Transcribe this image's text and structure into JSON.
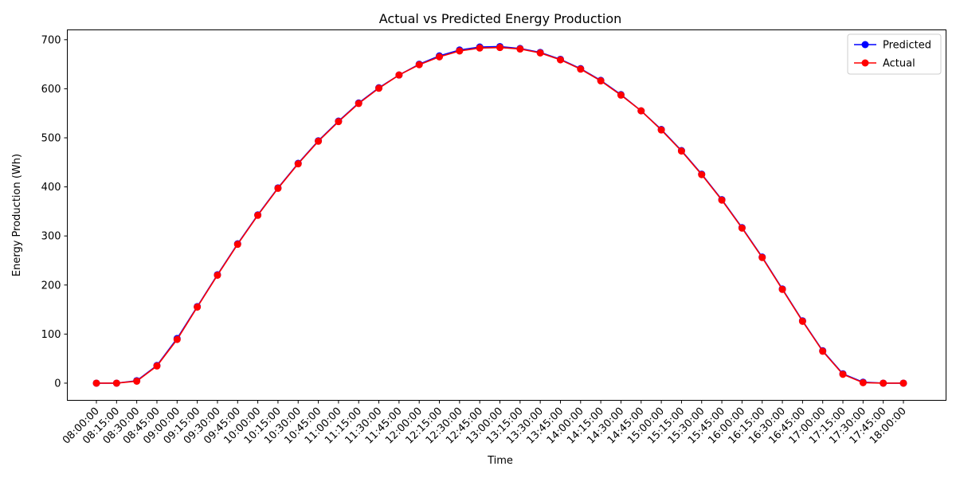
{
  "chart_data": {
    "type": "line",
    "title": "Actual vs Predicted Energy Production",
    "xlabel": "Time",
    "ylabel": "Energy Production (Wh)",
    "ylim": [
      -35,
      720
    ],
    "yticks": [
      0,
      100,
      200,
      300,
      400,
      500,
      600,
      700
    ],
    "legend_position": "top-right",
    "grid": false,
    "categories": [
      "08:00:00",
      "08:15:00",
      "08:30:00",
      "08:45:00",
      "09:00:00",
      "09:15:00",
      "09:30:00",
      "09:45:00",
      "10:00:00",
      "10:15:00",
      "10:30:00",
      "10:45:00",
      "11:00:00",
      "11:15:00",
      "11:30:00",
      "11:45:00",
      "12:00:00",
      "12:15:00",
      "12:30:00",
      "12:45:00",
      "13:00:00",
      "13:15:00",
      "13:30:00",
      "13:45:00",
      "14:00:00",
      "14:15:00",
      "14:30:00",
      "14:45:00",
      "15:00:00",
      "15:15:00",
      "15:30:00",
      "15:45:00",
      "16:00:00",
      "16:15:00",
      "16:30:00",
      "16:45:00",
      "17:00:00",
      "17:15:00",
      "17:30:00",
      "17:45:00",
      "18:00:00"
    ],
    "series": [
      {
        "name": "Predicted",
        "color": "#0000ff",
        "values": [
          0,
          0,
          5,
          36,
          91,
          156,
          221,
          284,
          343,
          398,
          448,
          494,
          534,
          571,
          602,
          628,
          650,
          667,
          679,
          685,
          686,
          682,
          674,
          660,
          641,
          617,
          588,
          555,
          517,
          474,
          426,
          374,
          317,
          257,
          192,
          127,
          66,
          19,
          2,
          0,
          0
        ]
      },
      {
        "name": "Actual",
        "color": "#ff0000",
        "values": [
          0,
          0,
          4,
          35,
          89,
          155,
          220,
          283,
          342,
          397,
          447,
          493,
          533,
          570,
          601,
          628,
          649,
          665,
          677,
          683,
          684,
          681,
          673,
          659,
          640,
          616,
          587,
          555,
          516,
          473,
          425,
          373,
          316,
          256,
          191,
          126,
          65,
          18,
          1,
          0,
          0
        ]
      }
    ]
  }
}
